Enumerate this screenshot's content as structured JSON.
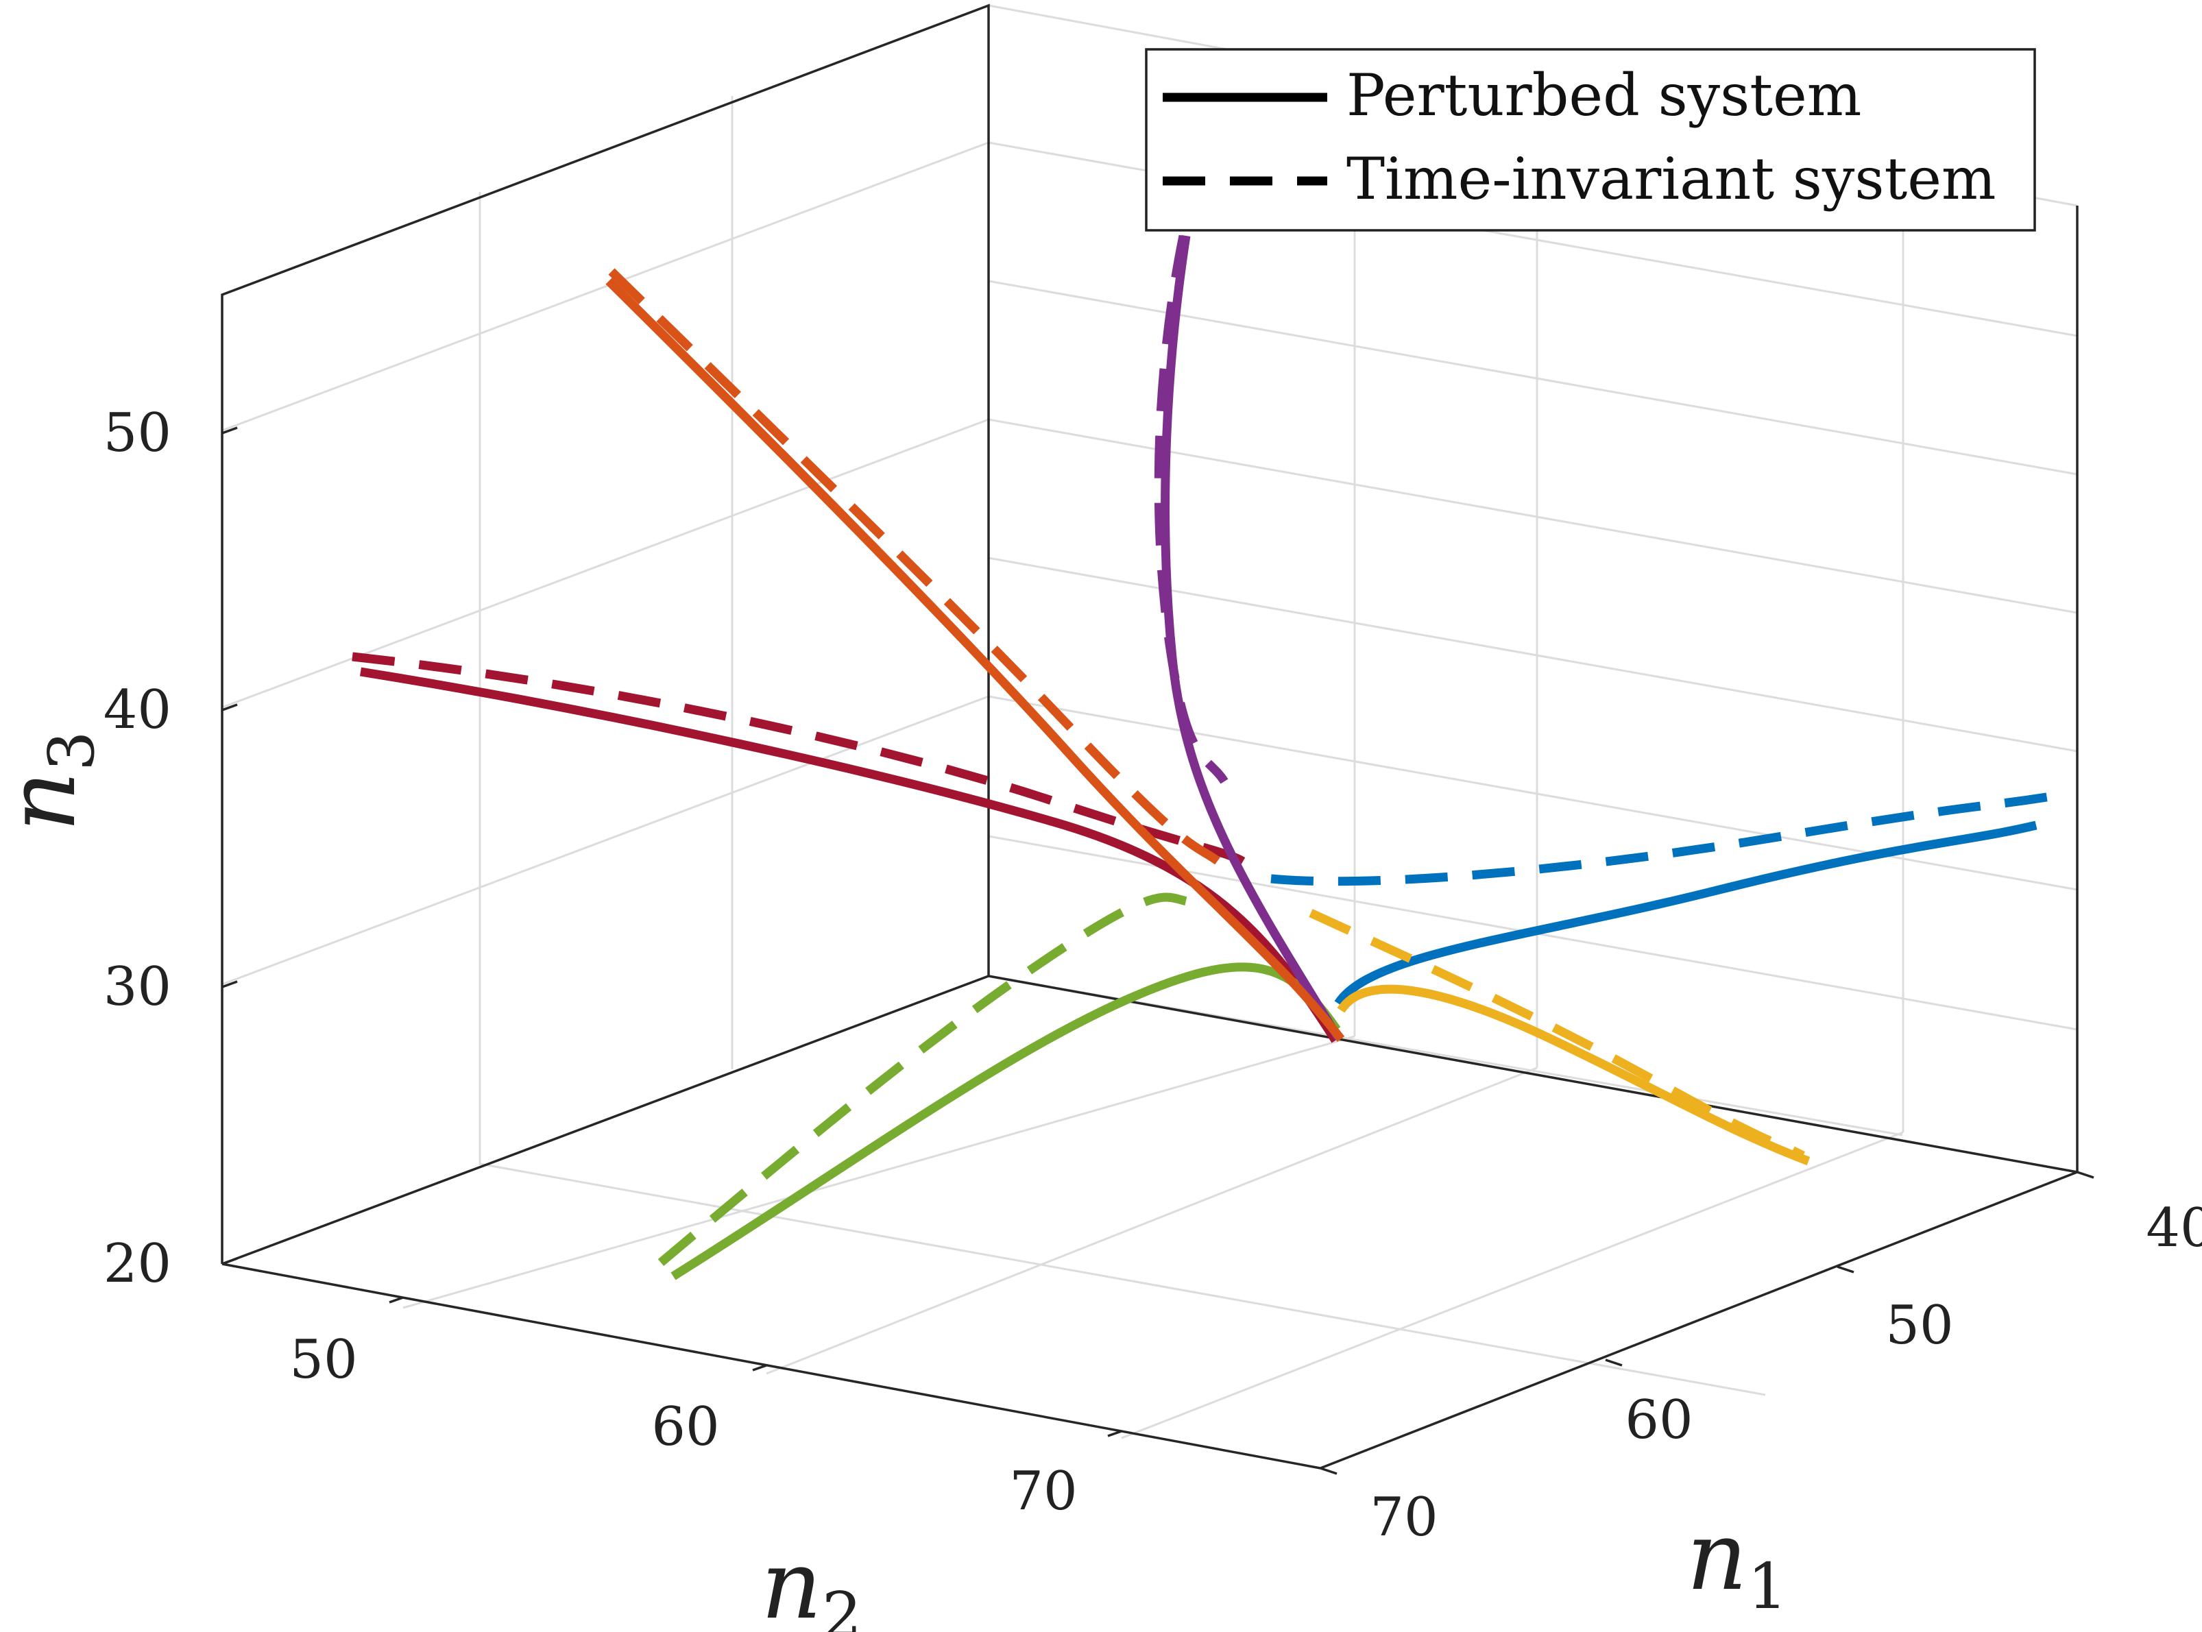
{
  "chart_data": {
    "type": "line",
    "title": "",
    "axes": {
      "n1": {
        "label": "n",
        "sub": "1",
        "ticks": [
          "40",
          "50",
          "60",
          "70"
        ],
        "lim": [
          40,
          70
        ]
      },
      "n2": {
        "label": "n",
        "sub": "2",
        "ticks": [
          "50",
          "60",
          "70"
        ],
        "lim": [
          45,
          75
        ]
      },
      "n3": {
        "label": "n",
        "sub": "3",
        "ticks": [
          "20",
          "30",
          "40",
          "50"
        ],
        "lim": [
          20,
          55
        ]
      }
    },
    "grid": true,
    "legend": {
      "placement": "top-right",
      "entries": [
        {
          "label": "Perturbed system",
          "style": "solid"
        },
        {
          "label": "Time-invariant system",
          "style": "dashed"
        }
      ]
    },
    "series": [
      {
        "name": "blue",
        "color": "#0072BD",
        "perturbed": "s-blue",
        "invariant": "d-blue"
      },
      {
        "name": "orange",
        "color": "#D95319",
        "perturbed": "s-orange",
        "invariant": "d-orange"
      },
      {
        "name": "yellow",
        "color": "#EDB120",
        "perturbed": "s-yellow",
        "invariant": "d-yellow"
      },
      {
        "name": "purple",
        "color": "#7E2F8E",
        "perturbed": "s-purple",
        "invariant": "d-purple"
      },
      {
        "name": "green",
        "color": "#77AC30",
        "perturbed": "s-green",
        "invariant": "d-green"
      },
      {
        "name": "dark-red",
        "color": "#A2142F",
        "perturbed": "s-darkred",
        "invariant": "d-darkred"
      }
    ],
    "convergence_point": {
      "n1": 60,
      "n2": 75,
      "n3": 28
    }
  }
}
